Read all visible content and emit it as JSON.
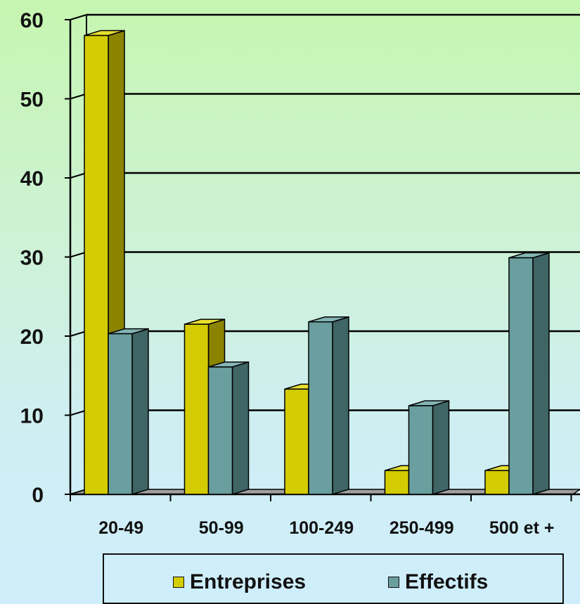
{
  "chart_data": {
    "type": "bar",
    "categories": [
      "20-49",
      "50-99",
      "100-249",
      "250-499",
      "500 et +"
    ],
    "series": [
      {
        "name": "Entreprises",
        "values": [
          58,
          21.5,
          13.3,
          3,
          3
        ]
      },
      {
        "name": "Effectifs",
        "values": [
          20.3,
          16.1,
          21.8,
          11.2,
          29.9
        ]
      }
    ],
    "ylim": [
      0,
      60
    ],
    "yticks": [
      0,
      10,
      20,
      30,
      40,
      50,
      60
    ],
    "grid": true,
    "legend_position": "bottom",
    "colors": {
      "Entreprises": {
        "front": "#d4cc00",
        "side": "#8a8400",
        "top": "#e6df30"
      },
      "Effectifs": {
        "front": "#6b9e9e",
        "side": "#3f6565",
        "top": "#84b4b4"
      }
    }
  },
  "legend": {
    "items": [
      {
        "label": "Entreprises",
        "color": "#d4cc00"
      },
      {
        "label": "Effectifs",
        "color": "#6b9e9e"
      }
    ]
  }
}
